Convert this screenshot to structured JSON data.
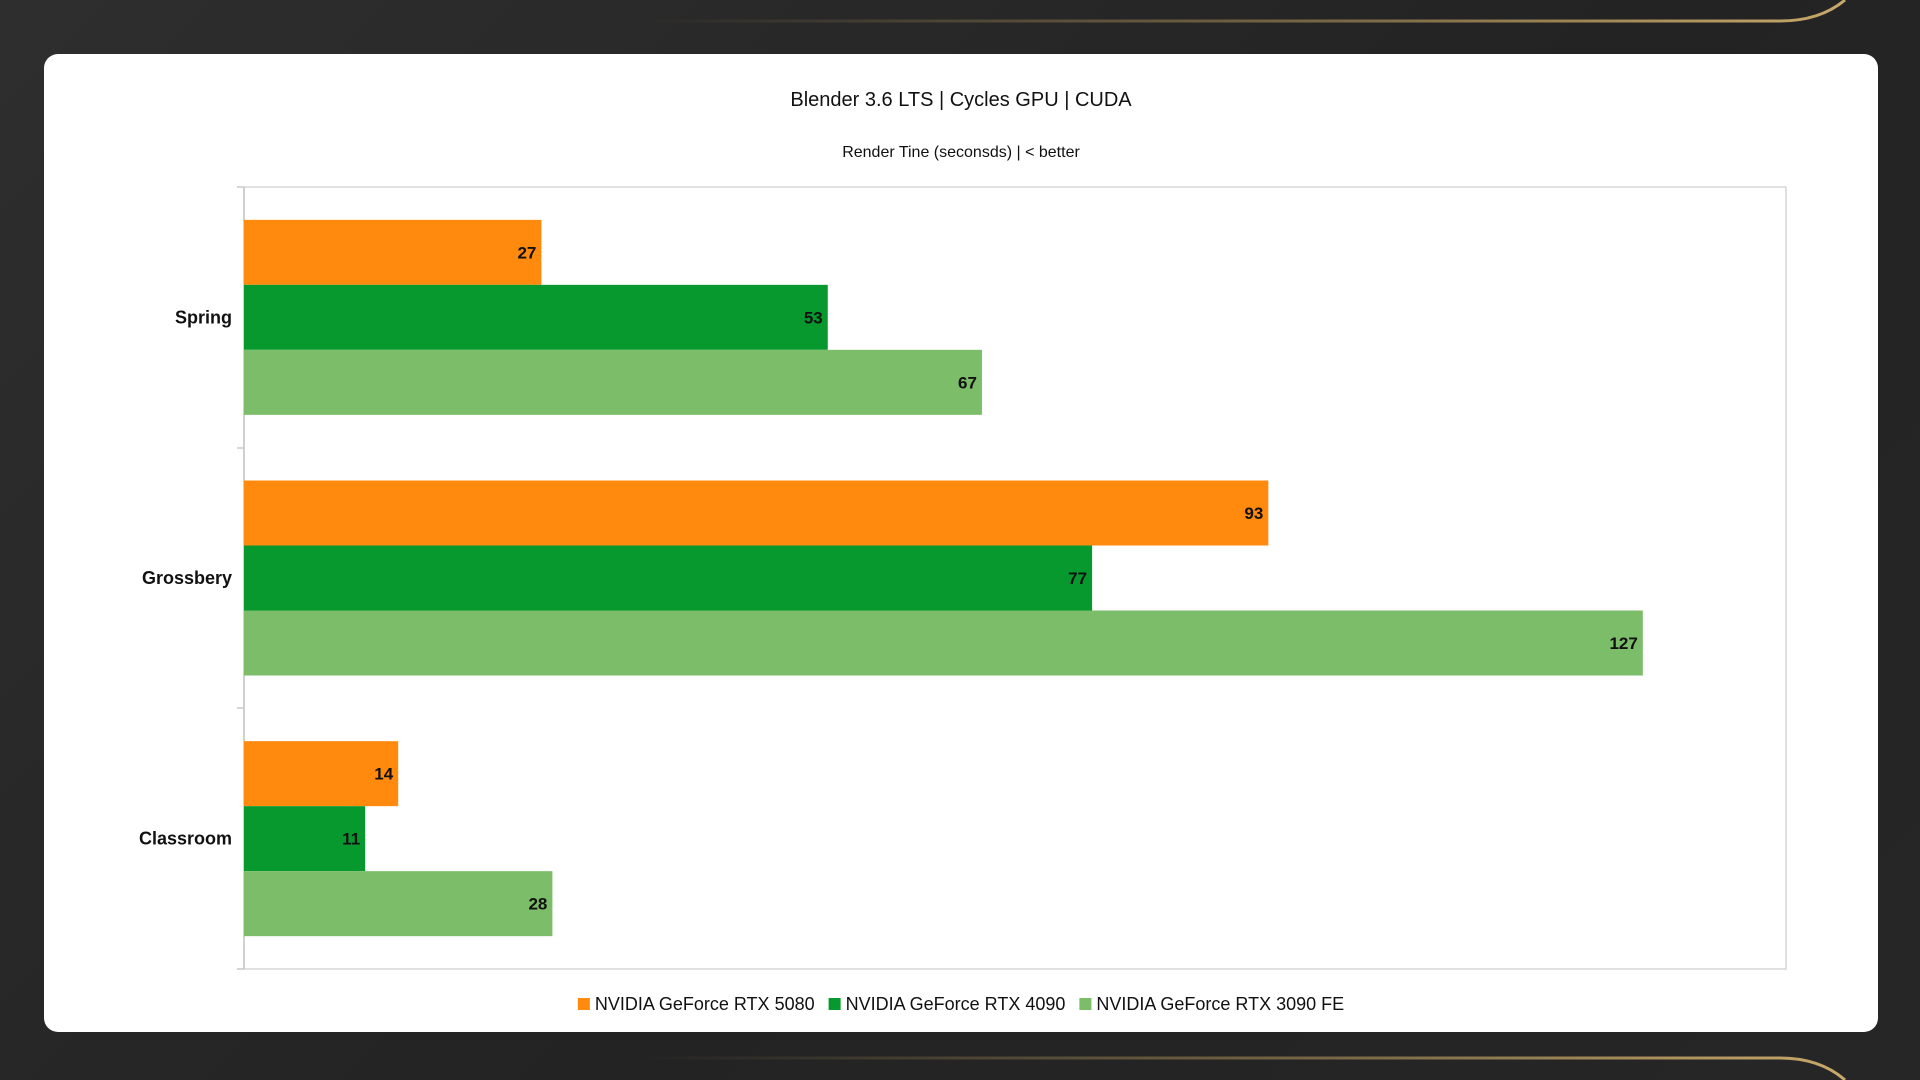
{
  "chart_data": {
    "type": "bar",
    "orientation": "horizontal",
    "title": "Blender 3.6 LTS | Cycles GPU | CUDA",
    "subtitle": "Render Tine (seconsds) | < better",
    "categories": [
      "Spring",
      "Grossbery",
      "Classroom"
    ],
    "series": [
      {
        "name": "NVIDIA GeForce RTX 5080",
        "color": "#ff8a0d",
        "values": [
          27,
          93,
          14
        ]
      },
      {
        "name": "NVIDIA GeForce RTX 4090",
        "color": "#07992e",
        "values": [
          53,
          77,
          11
        ]
      },
      {
        "name": "NVIDIA GeForce RTX 3090 FE",
        "color": "#7bbd68",
        "values": [
          67,
          127,
          28
        ]
      }
    ],
    "xlim": [
      0,
      140
    ],
    "grid": false,
    "legend_position": "bottom"
  },
  "colors": {
    "background": "#272727",
    "card": "#ffffff",
    "accent_gold": "#b89a5e"
  }
}
